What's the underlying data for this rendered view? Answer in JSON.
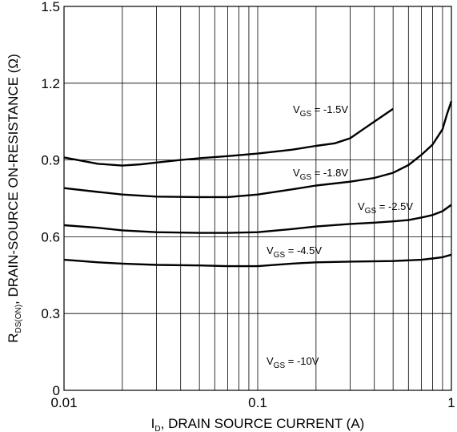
{
  "chart_data": {
    "type": "line",
    "x_scale": "log",
    "xlim": [
      0.01,
      1
    ],
    "ylim": [
      0,
      1.5
    ],
    "grid": true,
    "xlabel": {
      "symbol": "I",
      "sub": "D",
      "text": ", DRAIN SOURCE CURRENT (A)"
    },
    "ylabel": {
      "symbol": "R",
      "sub": "DS(ON)",
      "text": ", DRAIN-SOURCE ON-RESISTANCE (Ω)"
    },
    "x_ticks": [
      {
        "value": 0.01,
        "label": "0.01"
      },
      {
        "value": 0.1,
        "label": "0.1"
      },
      {
        "value": 1,
        "label": "1"
      }
    ],
    "y_ticks": [
      {
        "value": 0,
        "label": "0"
      },
      {
        "value": 0.3,
        "label": "0.3"
      },
      {
        "value": 0.6,
        "label": "0.6"
      },
      {
        "value": 0.9,
        "label": "0.9"
      },
      {
        "value": 1.2,
        "label": "1.2"
      },
      {
        "value": 1.5,
        "label": "1.5"
      }
    ],
    "series": [
      {
        "name": "V_GS = -1.5V",
        "label": {
          "symbol": "V",
          "sub": "GS",
          "text": " = -1.5V"
        },
        "x": [
          0.01,
          0.015,
          0.02,
          0.025,
          0.03,
          0.04,
          0.05,
          0.07,
          0.1,
          0.15,
          0.2,
          0.25,
          0.3,
          0.35,
          0.4,
          0.5
        ],
        "y": [
          0.91,
          0.885,
          0.878,
          0.883,
          0.89,
          0.9,
          0.907,
          0.915,
          0.925,
          0.94,
          0.955,
          0.965,
          0.985,
          1.02,
          1.05,
          1.1
        ]
      },
      {
        "name": "V_GS = -1.8V",
        "label": {
          "symbol": "V",
          "sub": "GS",
          "text": " = -1.8V"
        },
        "x": [
          0.01,
          0.015,
          0.02,
          0.03,
          0.05,
          0.07,
          0.1,
          0.15,
          0.2,
          0.3,
          0.4,
          0.5,
          0.6,
          0.7,
          0.8,
          0.9,
          0.95,
          1.0
        ],
        "y": [
          0.79,
          0.775,
          0.765,
          0.757,
          0.755,
          0.755,
          0.765,
          0.785,
          0.8,
          0.815,
          0.83,
          0.85,
          0.88,
          0.92,
          0.96,
          1.02,
          1.08,
          1.13
        ]
      },
      {
        "name": "V_GS = -2.5V",
        "label": {
          "symbol": "V",
          "sub": "GS",
          "text": " = -2.5V"
        },
        "x": [
          0.01,
          0.015,
          0.02,
          0.03,
          0.05,
          0.07,
          0.1,
          0.15,
          0.2,
          0.3,
          0.4,
          0.5,
          0.6,
          0.7,
          0.8,
          0.9,
          1.0
        ],
        "y": [
          0.645,
          0.635,
          0.625,
          0.618,
          0.615,
          0.615,
          0.618,
          0.63,
          0.64,
          0.65,
          0.655,
          0.66,
          0.665,
          0.675,
          0.685,
          0.7,
          0.725
        ]
      },
      {
        "name": "V_GS = -4.5V",
        "label": {
          "symbol": "V",
          "sub": "GS",
          "text": " = -4.5V"
        },
        "x": [
          0.01,
          0.015,
          0.02,
          0.03,
          0.05,
          0.07,
          0.1,
          0.15,
          0.2,
          0.3,
          0.5,
          0.6,
          0.7,
          0.8,
          0.9,
          1.0
        ],
        "y": [
          0.51,
          0.5,
          0.495,
          0.49,
          0.488,
          0.485,
          0.485,
          0.495,
          0.5,
          0.503,
          0.505,
          0.508,
          0.51,
          0.515,
          0.52,
          0.53
        ]
      },
      {
        "name": "V_GS = -10V",
        "label": {
          "symbol": "V",
          "sub": "GS",
          "text": " = -10V"
        },
        "x": [],
        "y": []
      }
    ]
  }
}
